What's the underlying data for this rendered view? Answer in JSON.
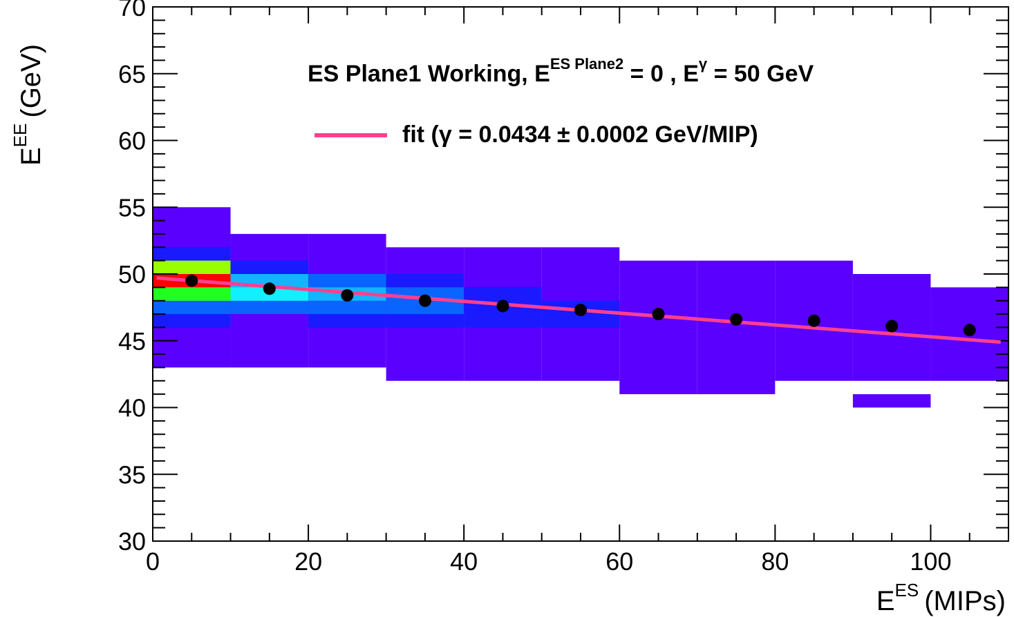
{
  "chart_data": {
    "type": "heatmap",
    "title": "",
    "xlabel": {
      "base": "E",
      "sup": "ES",
      "unit": "(MIPs)"
    },
    "ylabel": {
      "base": "E",
      "sup": "EE",
      "unit": "(GeV)"
    },
    "xlim": [
      0,
      110
    ],
    "ylim": [
      30,
      70
    ],
    "x_ticks": [
      "0",
      "20",
      "40",
      "60",
      "80",
      "100"
    ],
    "y_ticks": [
      "30",
      "35",
      "40",
      "45",
      "50",
      "55",
      "60",
      "65",
      "70"
    ],
    "grid": false,
    "annotation": {
      "part1": "ES Plane1 Working, E",
      "sup1": "ES Plane2",
      "part2": " = 0 , E",
      "sup2": "γ",
      "part3": " = 50 GeV"
    },
    "legend": {
      "placement": "top-center",
      "label": "fit (γ = 0.0434 ± 0.0002 GeV/MIP)",
      "color": "#ff3f8f"
    },
    "colors": {
      "level1": "#5a00ff",
      "level2": "#1a1aff",
      "level3": "#0a64ff",
      "level4": "#14b4ff",
      "level5": "#10f0ff",
      "level6": "#20ff20",
      "level7": "#99ff00",
      "level8": "#ff0000",
      "marker": "#000000",
      "fit": "#ff3f8f"
    },
    "cells": [
      {
        "x": [
          0,
          10
        ],
        "y": [
          43,
          55
        ],
        "level": 1
      },
      {
        "x": [
          0,
          10
        ],
        "y": [
          46,
          52
        ],
        "level": 2
      },
      {
        "x": [
          0,
          10
        ],
        "y": [
          47,
          51
        ],
        "level": 3
      },
      {
        "x": [
          0,
          10
        ],
        "y": [
          48,
          51
        ],
        "level": 4
      },
      {
        "x": [
          0,
          10
        ],
        "y": [
          48,
          51
        ],
        "level": 7
      },
      {
        "x": [
          0,
          10
        ],
        "y": [
          48,
          49
        ],
        "level": 6
      },
      {
        "x": [
          0,
          10
        ],
        "y": [
          49,
          50
        ],
        "level": 8
      },
      {
        "x": [
          10,
          20
        ],
        "y": [
          43,
          53
        ],
        "level": 1
      },
      {
        "x": [
          10,
          20
        ],
        "y": [
          47,
          51
        ],
        "level": 2
      },
      {
        "x": [
          10,
          20
        ],
        "y": [
          47,
          50
        ],
        "level": 3
      },
      {
        "x": [
          10,
          20
        ],
        "y": [
          48,
          50
        ],
        "level": 4
      },
      {
        "x": [
          10,
          20
        ],
        "y": [
          48,
          49
        ],
        "level": 5
      },
      {
        "x": [
          20,
          30
        ],
        "y": [
          43,
          53
        ],
        "level": 1
      },
      {
        "x": [
          20,
          30
        ],
        "y": [
          46,
          50
        ],
        "level": 2
      },
      {
        "x": [
          20,
          30
        ],
        "y": [
          47,
          50
        ],
        "level": 3
      },
      {
        "x": [
          20,
          30
        ],
        "y": [
          48,
          49
        ],
        "level": 4
      },
      {
        "x": [
          30,
          40
        ],
        "y": [
          42,
          52
        ],
        "level": 1
      },
      {
        "x": [
          30,
          40
        ],
        "y": [
          46,
          50
        ],
        "level": 2
      },
      {
        "x": [
          30,
          40
        ],
        "y": [
          47,
          49
        ],
        "level": 3
      },
      {
        "x": [
          40,
          50
        ],
        "y": [
          42,
          52
        ],
        "level": 1
      },
      {
        "x": [
          40,
          50
        ],
        "y": [
          46,
          49
        ],
        "level": 2
      },
      {
        "x": [
          50,
          60
        ],
        "y": [
          42,
          52
        ],
        "level": 1
      },
      {
        "x": [
          50,
          60
        ],
        "y": [
          46,
          48
        ],
        "level": 2
      },
      {
        "x": [
          60,
          70
        ],
        "y": [
          41,
          51
        ],
        "level": 1
      },
      {
        "x": [
          70,
          80
        ],
        "y": [
          41,
          51
        ],
        "level": 1
      },
      {
        "x": [
          80,
          90
        ],
        "y": [
          42,
          51
        ],
        "level": 1
      },
      {
        "x": [
          90,
          100
        ],
        "y": [
          42,
          50
        ],
        "level": 1
      },
      {
        "x": [
          90,
          100
        ],
        "y": [
          40,
          41
        ],
        "level": 1
      },
      {
        "x": [
          100,
          110
        ],
        "y": [
          42,
          49
        ],
        "level": 1
      }
    ],
    "profile_points": {
      "x": [
        5,
        15,
        25,
        35,
        45,
        55,
        65,
        75,
        85,
        95,
        105
      ],
      "y": [
        49.5,
        48.9,
        48.4,
        48.0,
        47.6,
        47.3,
        47.0,
        46.6,
        46.5,
        46.1,
        45.8
      ]
    },
    "fit_line": {
      "x": [
        0.5,
        109
      ],
      "y": [
        49.7,
        44.9
      ]
    }
  }
}
